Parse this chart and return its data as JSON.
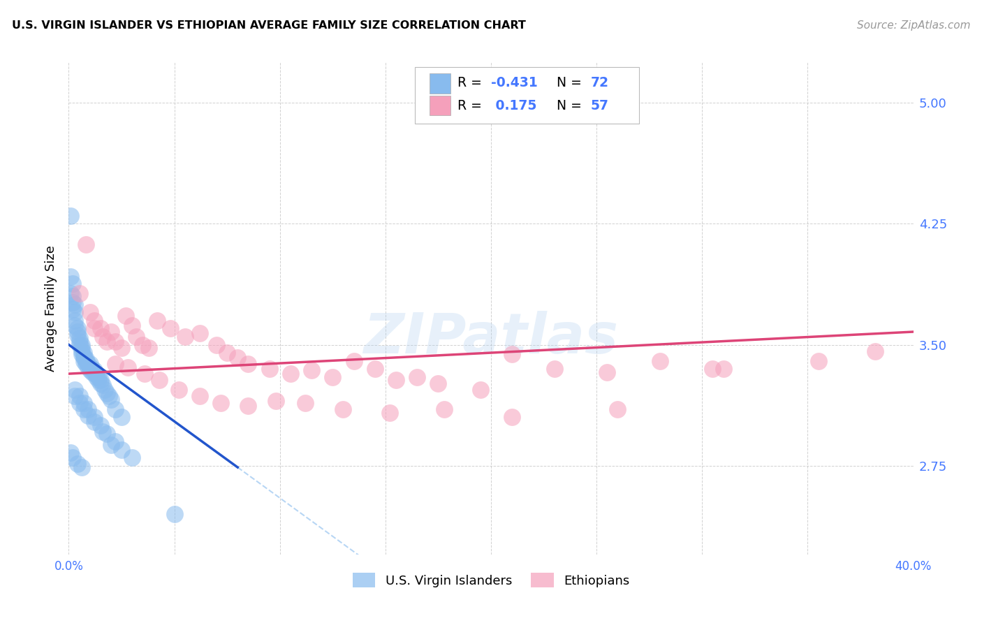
{
  "title": "U.S. VIRGIN ISLANDER VS ETHIOPIAN AVERAGE FAMILY SIZE CORRELATION CHART",
  "source": "Source: ZipAtlas.com",
  "ylabel": "Average Family Size",
  "xlim": [
    0.0,
    0.4
  ],
  "ylim": [
    2.2,
    5.25
  ],
  "yticks_right": [
    2.75,
    3.5,
    4.25,
    5.0
  ],
  "xticks": [
    0.0,
    0.05,
    0.1,
    0.15,
    0.2,
    0.25,
    0.3,
    0.35,
    0.4
  ],
  "xtick_labels": [
    "0.0%",
    "",
    "",
    "",
    "",
    "",
    "",
    "",
    "40.0%"
  ],
  "blue_color": "#88bbee",
  "pink_color": "#f5a0bb",
  "blue_line_color": "#2255cc",
  "pink_line_color": "#dd4477",
  "right_axis_color": "#4477ff",
  "background_color": "#ffffff",
  "grid_color": "#cccccc",
  "blue_R": "-0.431",
  "blue_N": "72",
  "pink_R": "0.175",
  "pink_N": "57",
  "blue_scatter_x": [
    0.001,
    0.001,
    0.001,
    0.002,
    0.002,
    0.002,
    0.002,
    0.003,
    0.003,
    0.003,
    0.003,
    0.004,
    0.004,
    0.004,
    0.005,
    0.005,
    0.005,
    0.006,
    0.006,
    0.006,
    0.006,
    0.007,
    0.007,
    0.007,
    0.007,
    0.008,
    0.008,
    0.008,
    0.009,
    0.009,
    0.01,
    0.01,
    0.01,
    0.011,
    0.011,
    0.012,
    0.012,
    0.013,
    0.013,
    0.014,
    0.014,
    0.015,
    0.015,
    0.016,
    0.017,
    0.018,
    0.019,
    0.02,
    0.022,
    0.025,
    0.003,
    0.005,
    0.007,
    0.009,
    0.012,
    0.015,
    0.018,
    0.022,
    0.025,
    0.03,
    0.003,
    0.005,
    0.007,
    0.009,
    0.012,
    0.016,
    0.02,
    0.001,
    0.002,
    0.004,
    0.006,
    0.05
  ],
  "blue_scatter_y": [
    4.3,
    3.92,
    3.82,
    3.88,
    3.8,
    3.76,
    3.72,
    3.75,
    3.7,
    3.65,
    3.62,
    3.6,
    3.58,
    3.56,
    3.54,
    3.52,
    3.5,
    3.5,
    3.48,
    3.46,
    3.44,
    3.45,
    3.43,
    3.42,
    3.4,
    3.41,
    3.4,
    3.38,
    3.38,
    3.36,
    3.38,
    3.36,
    3.34,
    3.35,
    3.33,
    3.34,
    3.32,
    3.32,
    3.3,
    3.3,
    3.28,
    3.28,
    3.26,
    3.25,
    3.22,
    3.2,
    3.18,
    3.16,
    3.1,
    3.05,
    3.22,
    3.18,
    3.14,
    3.1,
    3.05,
    3.0,
    2.95,
    2.9,
    2.85,
    2.8,
    3.18,
    3.14,
    3.1,
    3.06,
    3.02,
    2.96,
    2.88,
    2.83,
    2.8,
    2.76,
    2.74,
    2.45
  ],
  "pink_scatter_x": [
    0.005,
    0.008,
    0.01,
    0.012,
    0.015,
    0.016,
    0.018,
    0.02,
    0.022,
    0.025,
    0.027,
    0.03,
    0.032,
    0.035,
    0.038,
    0.042,
    0.048,
    0.055,
    0.062,
    0.07,
    0.075,
    0.08,
    0.085,
    0.095,
    0.105,
    0.115,
    0.125,
    0.135,
    0.145,
    0.155,
    0.165,
    0.175,
    0.195,
    0.21,
    0.23,
    0.255,
    0.28,
    0.305,
    0.355,
    0.022,
    0.028,
    0.036,
    0.043,
    0.052,
    0.062,
    0.072,
    0.085,
    0.098,
    0.112,
    0.13,
    0.152,
    0.178,
    0.21,
    0.26,
    0.31,
    0.382,
    0.012
  ],
  "pink_scatter_y": [
    3.82,
    4.12,
    3.7,
    3.65,
    3.6,
    3.55,
    3.52,
    3.58,
    3.52,
    3.48,
    3.68,
    3.62,
    3.55,
    3.5,
    3.48,
    3.65,
    3.6,
    3.55,
    3.57,
    3.5,
    3.45,
    3.42,
    3.38,
    3.35,
    3.32,
    3.34,
    3.3,
    3.4,
    3.35,
    3.28,
    3.3,
    3.26,
    3.22,
    3.44,
    3.35,
    3.33,
    3.4,
    3.35,
    3.4,
    3.38,
    3.36,
    3.32,
    3.28,
    3.22,
    3.18,
    3.14,
    3.12,
    3.15,
    3.14,
    3.1,
    3.08,
    3.1,
    3.05,
    3.1,
    3.35,
    3.46,
    3.6
  ],
  "blue_line_x0": 0.0,
  "blue_line_x1": 0.08,
  "blue_line_y0": 3.5,
  "blue_line_y1": 2.74,
  "pink_line_x0": 0.0,
  "pink_line_x1": 0.4,
  "pink_line_y0": 3.32,
  "pink_line_y1": 3.58,
  "watermark_text": "ZIPatlas",
  "watermark_color": "#aaccee",
  "watermark_alpha": 0.28
}
